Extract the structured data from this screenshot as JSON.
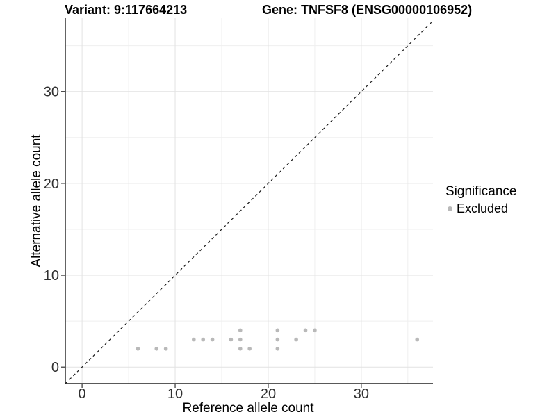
{
  "header": {
    "variant_title": "Variant: 9:117664213",
    "gene_title": "Gene: TNFSF8 (ENSG00000106952)"
  },
  "legend": {
    "title": "Significance",
    "items": [
      {
        "label": "Excluded",
        "color": "#b9b9b9"
      }
    ]
  },
  "chart_data": {
    "type": "scatter",
    "title": "",
    "xlabel": "Reference allele count",
    "ylabel": "Alternative allele count",
    "xlim": [
      -1.8,
      37.7
    ],
    "ylim": [
      -1.8,
      38.0
    ],
    "x_ticks": [
      0,
      10,
      20,
      30
    ],
    "y_ticks": [
      0,
      10,
      20,
      30
    ],
    "x_minor_gridlines": [
      5,
      15,
      25,
      35
    ],
    "y_minor_gridlines": [
      5,
      15,
      25,
      35
    ],
    "grid": true,
    "legend_position": "right",
    "identity_line": {
      "style": "dashed",
      "slope": 1,
      "intercept": 0,
      "from": -1.8,
      "to": 37.7,
      "color": "#1a1a1a"
    },
    "series": [
      {
        "name": "Excluded",
        "color": "#b9b9b9",
        "points": [
          [
            6,
            2
          ],
          [
            8,
            2
          ],
          [
            9,
            2
          ],
          [
            17,
            2
          ],
          [
            18,
            2
          ],
          [
            21,
            2
          ],
          [
            12,
            3
          ],
          [
            13,
            3
          ],
          [
            14,
            3
          ],
          [
            16,
            3
          ],
          [
            17,
            3
          ],
          [
            21,
            3
          ],
          [
            23,
            3
          ],
          [
            36,
            3
          ],
          [
            17,
            4
          ],
          [
            21,
            4
          ],
          [
            24,
            4
          ],
          [
            25,
            4
          ]
        ]
      }
    ]
  },
  "colors": {
    "background": "#ffffff",
    "grid_major": "#e2e2e2",
    "grid_minor": "#efefef",
    "axis_line": "#222222",
    "tick_mark": "#333333",
    "tick_label": "#303030",
    "point": "#b9b9b9"
  }
}
